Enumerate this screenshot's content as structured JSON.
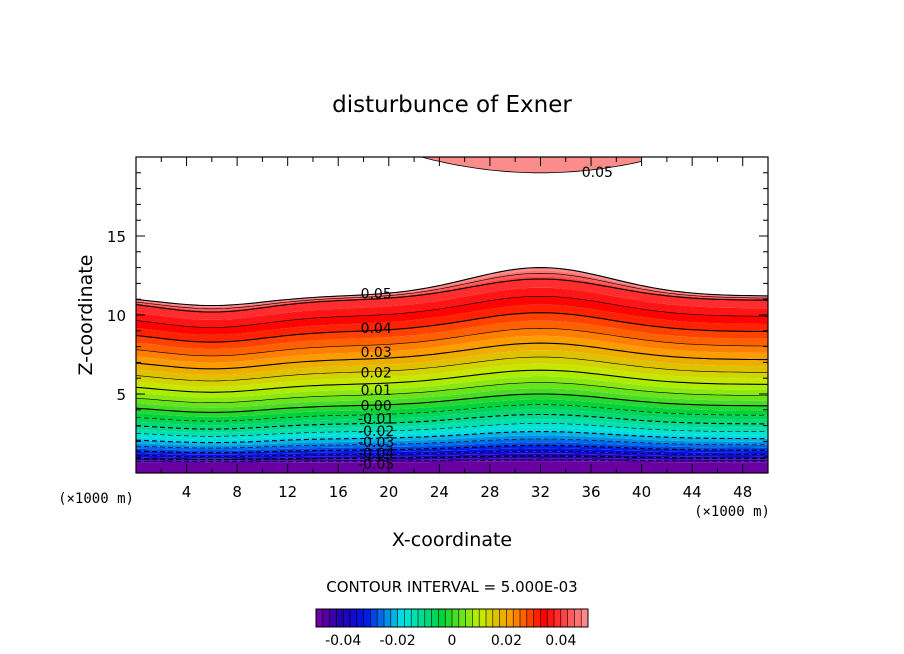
{
  "chart_data": {
    "type": "contour",
    "title": "disturbunce of Exner",
    "xlabel": "X-coordinate",
    "ylabel": "Z-coordinate",
    "x_unit_label": "(×1000 m)",
    "y_unit_label": "(×1000 m)",
    "xlim": [
      0,
      50
    ],
    "ylim": [
      0,
      20
    ],
    "x_ticks": [
      4,
      8,
      12,
      16,
      20,
      24,
      28,
      32,
      36,
      40,
      44,
      48
    ],
    "y_ticks": [
      5,
      10,
      15
    ],
    "contour_interval_label": "CONTOUR INTERVAL = 5.000E-03",
    "contour_interval": 0.005,
    "color_range": [
      -0.05,
      0.05
    ],
    "colorbar_ticks": [
      "-0.04",
      "-0.02",
      "0",
      "0.02",
      "0.04"
    ],
    "contour_labels": [
      {
        "text": "0.05",
        "x": 19.0,
        "z": 11.3
      },
      {
        "text": "0.04",
        "x": 19.0,
        "z": 9.1
      },
      {
        "text": "0.03",
        "x": 19.0,
        "z": 7.6
      },
      {
        "text": "0.02",
        "x": 19.0,
        "z": 6.3
      },
      {
        "text": "0.01",
        "x": 19.0,
        "z": 5.2
      },
      {
        "text": "0.00",
        "x": 19.0,
        "z": 4.2
      },
      {
        "text": "-0.01",
        "x": 19.0,
        "z": 3.4
      },
      {
        "text": "-0.02",
        "x": 19.0,
        "z": 2.6
      },
      {
        "text": "-0.03",
        "x": 19.0,
        "z": 1.9
      },
      {
        "text": "-0.04",
        "x": 19.0,
        "z": 1.2
      },
      {
        "text": "-0.05",
        "x": 19.0,
        "z": 0.5
      },
      {
        "text": "0.05",
        "x": 36.5,
        "z": 19.0
      }
    ],
    "topography": "smooth hill peaking near x = 32 km",
    "grid": false
  }
}
